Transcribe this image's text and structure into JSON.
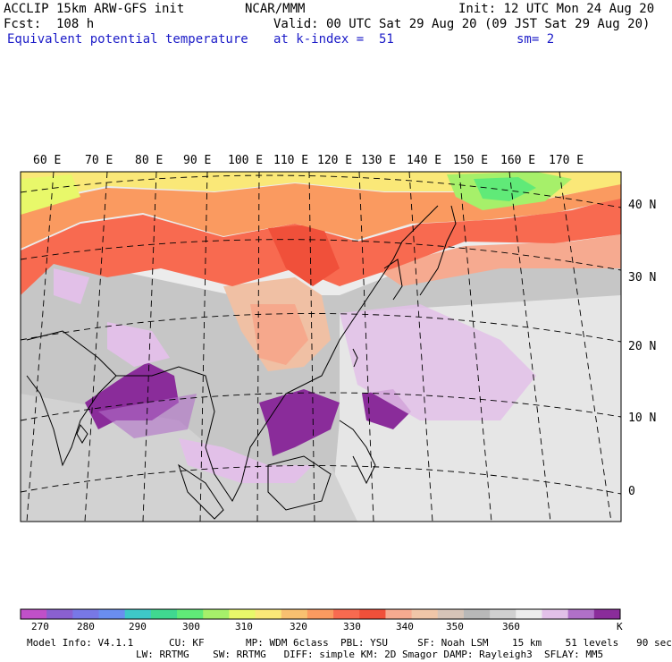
{
  "header": {
    "model": "ACCLIP 15km ARW-GFS init",
    "center": "NCAR/MMM",
    "init": "Init: 12 UTC Mon 24 Aug 20",
    "forecast": "Fcst:  108 h",
    "valid": "Valid: 00 UTC Sat 29 Aug 20 (09 JST Sat 29 Aug 20)",
    "field": "Equivalent potential temperature",
    "level": "at k-index =  51",
    "smoothing": "sm= 2"
  },
  "longitude_labels": [
    "60 E",
    "70 E",
    "80 E",
    "90 E",
    "100 E",
    "110 E",
    "120 E",
    "130 E",
    "140 E",
    "150 E",
    "160 E",
    "170 E"
  ],
  "latitude_labels": [
    "40 N",
    "30 N",
    "20 N",
    "10 N",
    "0"
  ],
  "colorbar": {
    "unit": "K",
    "ticks": [
      "270",
      "280",
      "290",
      "300",
      "310",
      "320",
      "330",
      "340",
      "350",
      "360"
    ],
    "colors": [
      "#c050c8",
      "#8a60d0",
      "#7878e6",
      "#6a8ef0",
      "#3ec8c8",
      "#40d890",
      "#60ea78",
      "#a6f06a",
      "#e8f86a",
      "#fae878",
      "#f8c070",
      "#fa9a60",
      "#f86a50",
      "#f0503a",
      "#f6aa90",
      "#f0c6a8",
      "#d6c4b8",
      "#b8b8b8",
      "#d0d0d0",
      "#ececec",
      "#e2c0e8",
      "#b070c8",
      "#8a2c9a"
    ]
  },
  "footer": {
    "line1": "Model Info: V4.1.1      CU: KF       MP: WDM 6class  PBL: YSU     SF: Noah LSM    15 km    51 levels   90 sec",
    "line2": "LW: RRTMG    SW: RRTMG   DIFF: simple KM: 2D Smagor DAMP: Rayleigh3  SFLAY: MM5"
  }
}
